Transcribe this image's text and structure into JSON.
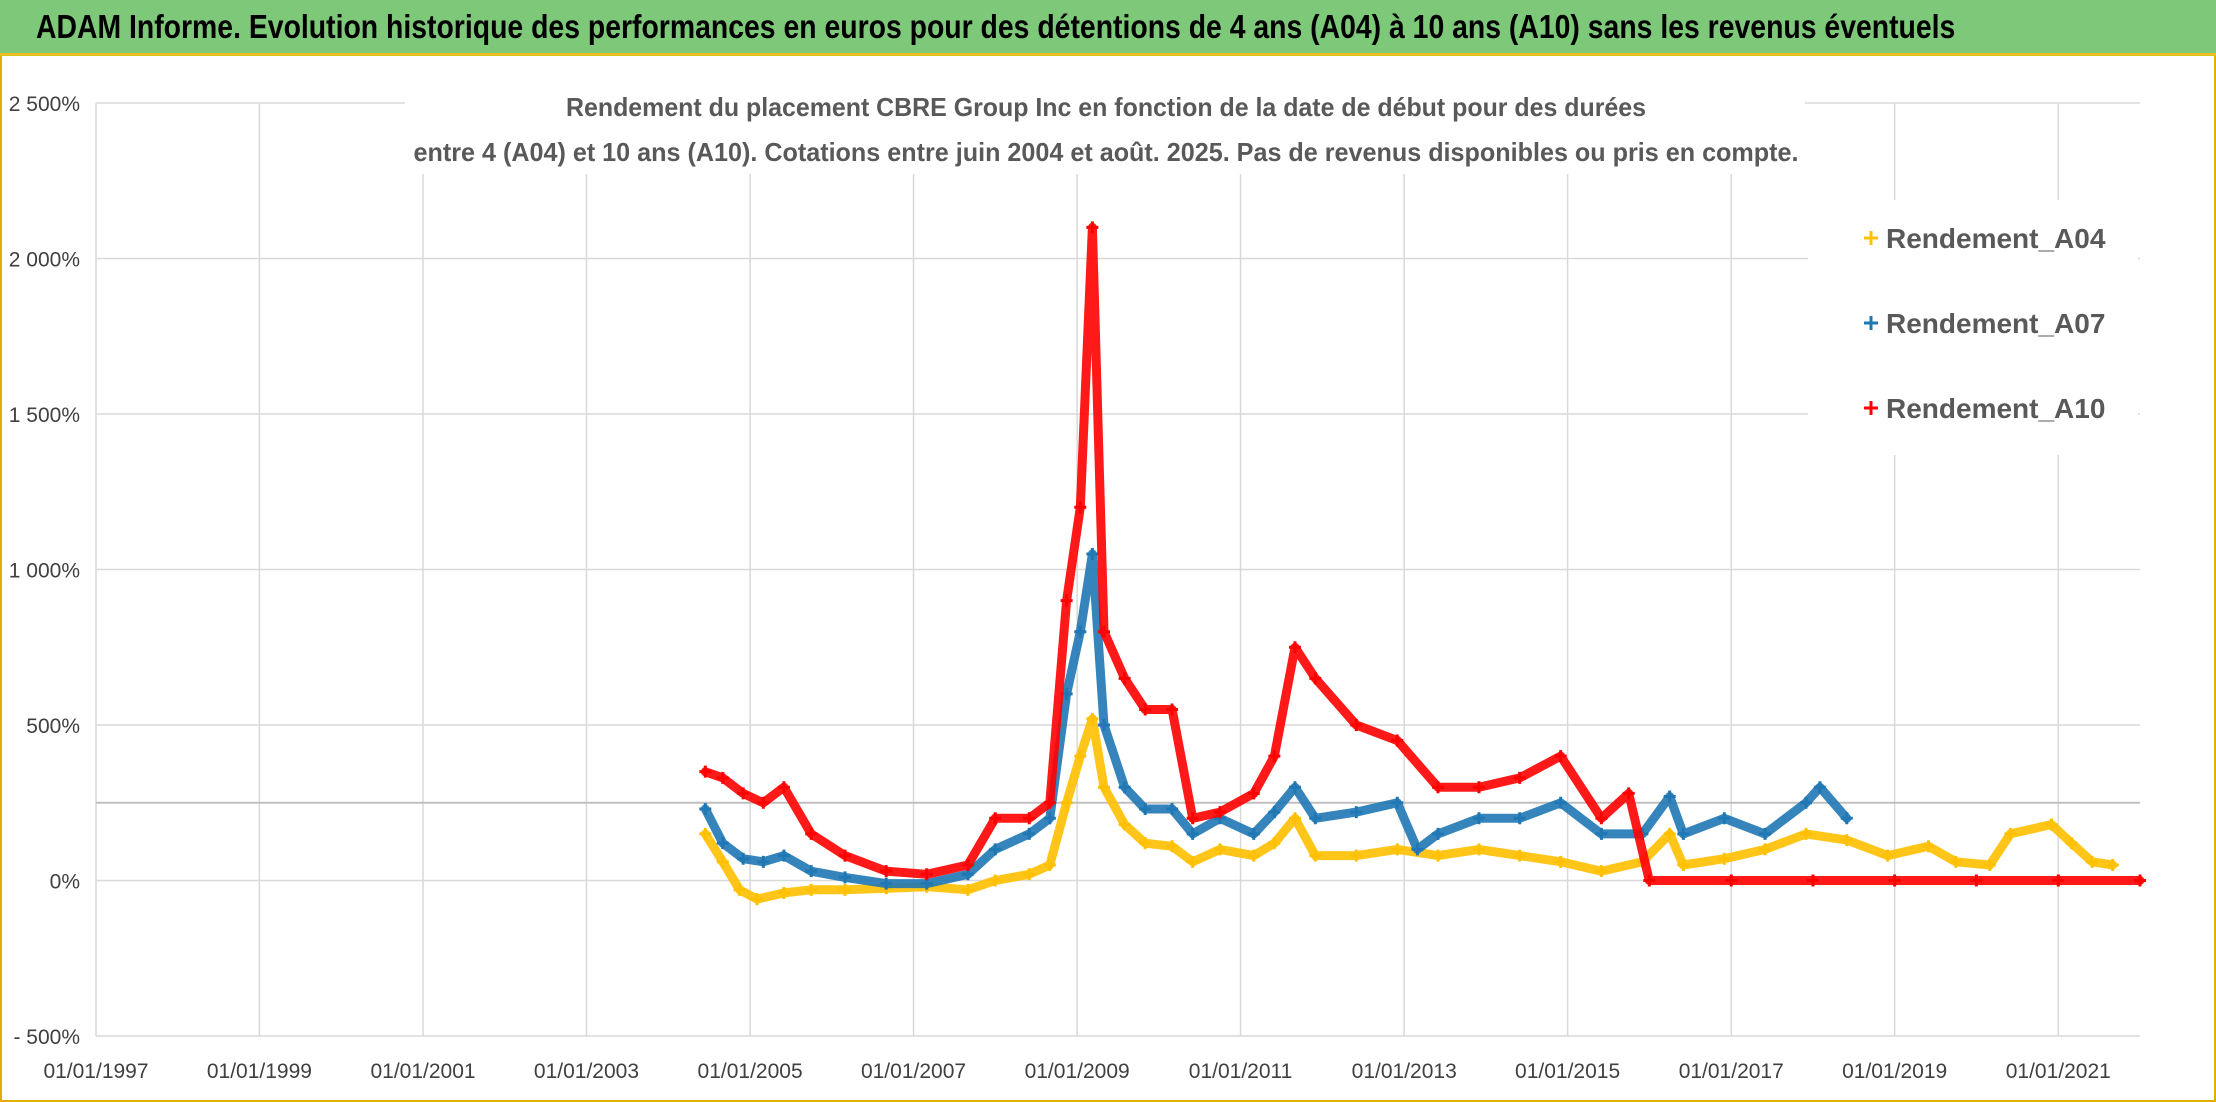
{
  "banner": {
    "title": "ADAM Informe. Evolution historique des performances en euros pour des détentions de 4 ans (A04) à 10 ans (A10) sans les revenus éventuels"
  },
  "colors": {
    "A04": "#ffc000",
    "A07": "#1f77b4",
    "A10": "#ff0000",
    "banner": "#7ec87a",
    "grid": "#d9d9d9",
    "reference_line": "#bfbfbf"
  },
  "chart_data": {
    "type": "scatter",
    "title_lines": [
      "Rendement du placement CBRE Group Inc en fonction de la date de début pour des durées",
      "entre 4 (A04) et 10 ans (A10). Cotations entre juin 2004 et août. 2025. Pas de revenus disponibles ou pris en compte."
    ],
    "xlabel": "",
    "ylabel": "",
    "xlim": [
      "1997-01-01",
      "2022-01-01"
    ],
    "ylim": [
      -500,
      2500
    ],
    "y_ticks": [
      -500,
      0,
      500,
      1000,
      1500,
      2000,
      2500
    ],
    "y_tick_labels": [
      "- 500%",
      "0%",
      "500%",
      "1 000%",
      "1 500%",
      "2 000%",
      "2 500%"
    ],
    "x_ticks": [
      "1997-01-01",
      "1999-01-01",
      "2001-01-01",
      "2003-01-01",
      "2005-01-01",
      "2007-01-01",
      "2009-01-01",
      "2011-01-01",
      "2013-01-01",
      "2015-01-01",
      "2017-01-01",
      "2019-01-01",
      "2021-01-01"
    ],
    "x_tick_labels": [
      "01/01/1997",
      "01/01/1999",
      "01/01/2001",
      "01/01/2003",
      "01/01/2005",
      "01/01/2007",
      "01/01/2009",
      "01/01/2011",
      "01/01/2013",
      "01/01/2015",
      "01/01/2017",
      "01/01/2019",
      "01/01/2021"
    ],
    "grid": true,
    "legend_position": "top-right",
    "reference_line_y": 250,
    "marker": "+",
    "series": [
      {
        "name": "Rendement_A04",
        "color": "#ffc000",
        "points": [
          [
            "2004-06-15",
            150
          ],
          [
            "2004-09-01",
            60
          ],
          [
            "2004-11-15",
            -30
          ],
          [
            "2005-02-01",
            -60
          ],
          [
            "2005-06-01",
            -40
          ],
          [
            "2005-10-01",
            -30
          ],
          [
            "2006-03-01",
            -30
          ],
          [
            "2006-09-01",
            -25
          ],
          [
            "2007-03-01",
            -20
          ],
          [
            "2007-09-01",
            -30
          ],
          [
            "2008-01-01",
            0
          ],
          [
            "2008-06-01",
            20
          ],
          [
            "2008-09-01",
            50
          ],
          [
            "2008-11-15",
            250
          ],
          [
            "2009-01-15",
            400
          ],
          [
            "2009-03-10",
            520
          ],
          [
            "2009-05-01",
            300
          ],
          [
            "2009-08-01",
            180
          ],
          [
            "2009-11-01",
            120
          ],
          [
            "2010-03-01",
            110
          ],
          [
            "2010-06-01",
            60
          ],
          [
            "2010-10-01",
            100
          ],
          [
            "2011-03-01",
            80
          ],
          [
            "2011-06-01",
            120
          ],
          [
            "2011-09-01",
            200
          ],
          [
            "2011-12-01",
            80
          ],
          [
            "2012-06-01",
            80
          ],
          [
            "2012-12-01",
            100
          ],
          [
            "2013-06-01",
            80
          ],
          [
            "2013-12-01",
            100
          ],
          [
            "2014-06-01",
            80
          ],
          [
            "2014-12-01",
            60
          ],
          [
            "2015-06-01",
            30
          ],
          [
            "2015-12-01",
            60
          ],
          [
            "2016-04-01",
            150
          ],
          [
            "2016-06-01",
            50
          ],
          [
            "2016-12-01",
            70
          ],
          [
            "2017-06-01",
            100
          ],
          [
            "2017-12-01",
            150
          ],
          [
            "2018-06-01",
            130
          ],
          [
            "2018-12-01",
            80
          ],
          [
            "2019-06-01",
            110
          ],
          [
            "2019-10-01",
            60
          ],
          [
            "2020-03-01",
            50
          ],
          [
            "2020-06-01",
            150
          ],
          [
            "2020-12-01",
            180
          ],
          [
            "2021-03-01",
            120
          ],
          [
            "2021-06-01",
            60
          ],
          [
            "2021-09-01",
            50
          ]
        ]
      },
      {
        "name": "Rendement_A07",
        "color": "#1f77b4",
        "points": [
          [
            "2004-06-15",
            230
          ],
          [
            "2004-09-01",
            120
          ],
          [
            "2004-12-01",
            70
          ],
          [
            "2005-03-01",
            60
          ],
          [
            "2005-06-01",
            80
          ],
          [
            "2005-10-01",
            30
          ],
          [
            "2006-03-01",
            10
          ],
          [
            "2006-09-01",
            -10
          ],
          [
            "2007-03-01",
            -10
          ],
          [
            "2007-09-01",
            20
          ],
          [
            "2008-01-01",
            100
          ],
          [
            "2008-06-01",
            150
          ],
          [
            "2008-09-01",
            200
          ],
          [
            "2008-11-15",
            600
          ],
          [
            "2009-01-15",
            800
          ],
          [
            "2009-03-10",
            1050
          ],
          [
            "2009-05-01",
            500
          ],
          [
            "2009-08-01",
            300
          ],
          [
            "2009-11-01",
            230
          ],
          [
            "2010-03-01",
            230
          ],
          [
            "2010-06-01",
            150
          ],
          [
            "2010-10-01",
            200
          ],
          [
            "2011-03-01",
            150
          ],
          [
            "2011-06-01",
            220
          ],
          [
            "2011-09-01",
            300
          ],
          [
            "2011-12-01",
            200
          ],
          [
            "2012-06-01",
            220
          ],
          [
            "2012-12-01",
            250
          ],
          [
            "2013-03-01",
            100
          ],
          [
            "2013-06-01",
            150
          ],
          [
            "2013-12-01",
            200
          ],
          [
            "2014-06-01",
            200
          ],
          [
            "2014-12-01",
            250
          ],
          [
            "2015-06-01",
            150
          ],
          [
            "2015-12-01",
            150
          ],
          [
            "2016-04-01",
            270
          ],
          [
            "2016-06-01",
            150
          ],
          [
            "2016-12-01",
            200
          ],
          [
            "2017-06-01",
            150
          ],
          [
            "2017-12-01",
            250
          ],
          [
            "2018-02-01",
            300
          ],
          [
            "2018-06-01",
            200
          ]
        ]
      },
      {
        "name": "Rendement_A10",
        "color": "#ff0000",
        "points": [
          [
            "2004-06-15",
            350
          ],
          [
            "2004-09-01",
            330
          ],
          [
            "2004-12-01",
            280
          ],
          [
            "2005-03-01",
            250
          ],
          [
            "2005-06-01",
            300
          ],
          [
            "2005-10-01",
            150
          ],
          [
            "2006-03-01",
            80
          ],
          [
            "2006-09-01",
            30
          ],
          [
            "2007-03-01",
            20
          ],
          [
            "2007-09-01",
            50
          ],
          [
            "2008-01-01",
            200
          ],
          [
            "2008-06-01",
            200
          ],
          [
            "2008-09-01",
            250
          ],
          [
            "2008-11-15",
            900
          ],
          [
            "2009-01-15",
            1200
          ],
          [
            "2009-03-10",
            2100
          ],
          [
            "2009-05-01",
            800
          ],
          [
            "2009-08-01",
            650
          ],
          [
            "2009-11-01",
            550
          ],
          [
            "2010-03-01",
            550
          ],
          [
            "2010-06-01",
            200
          ],
          [
            "2010-10-01",
            220
          ],
          [
            "2011-03-01",
            280
          ],
          [
            "2011-06-01",
            400
          ],
          [
            "2011-09-01",
            750
          ],
          [
            "2011-12-01",
            650
          ],
          [
            "2012-06-01",
            500
          ],
          [
            "2012-12-01",
            450
          ],
          [
            "2013-06-01",
            300
          ],
          [
            "2013-12-01",
            300
          ],
          [
            "2014-06-01",
            330
          ],
          [
            "2014-12-01",
            400
          ],
          [
            "2015-06-01",
            200
          ],
          [
            "2015-10-01",
            280
          ],
          [
            "2016-01-01",
            0
          ],
          [
            "2017-01-01",
            0
          ],
          [
            "2018-01-01",
            0
          ],
          [
            "2019-01-01",
            0
          ],
          [
            "2020-01-01",
            0
          ],
          [
            "2021-01-01",
            0
          ],
          [
            "2022-01-01",
            0
          ]
        ]
      }
    ]
  }
}
